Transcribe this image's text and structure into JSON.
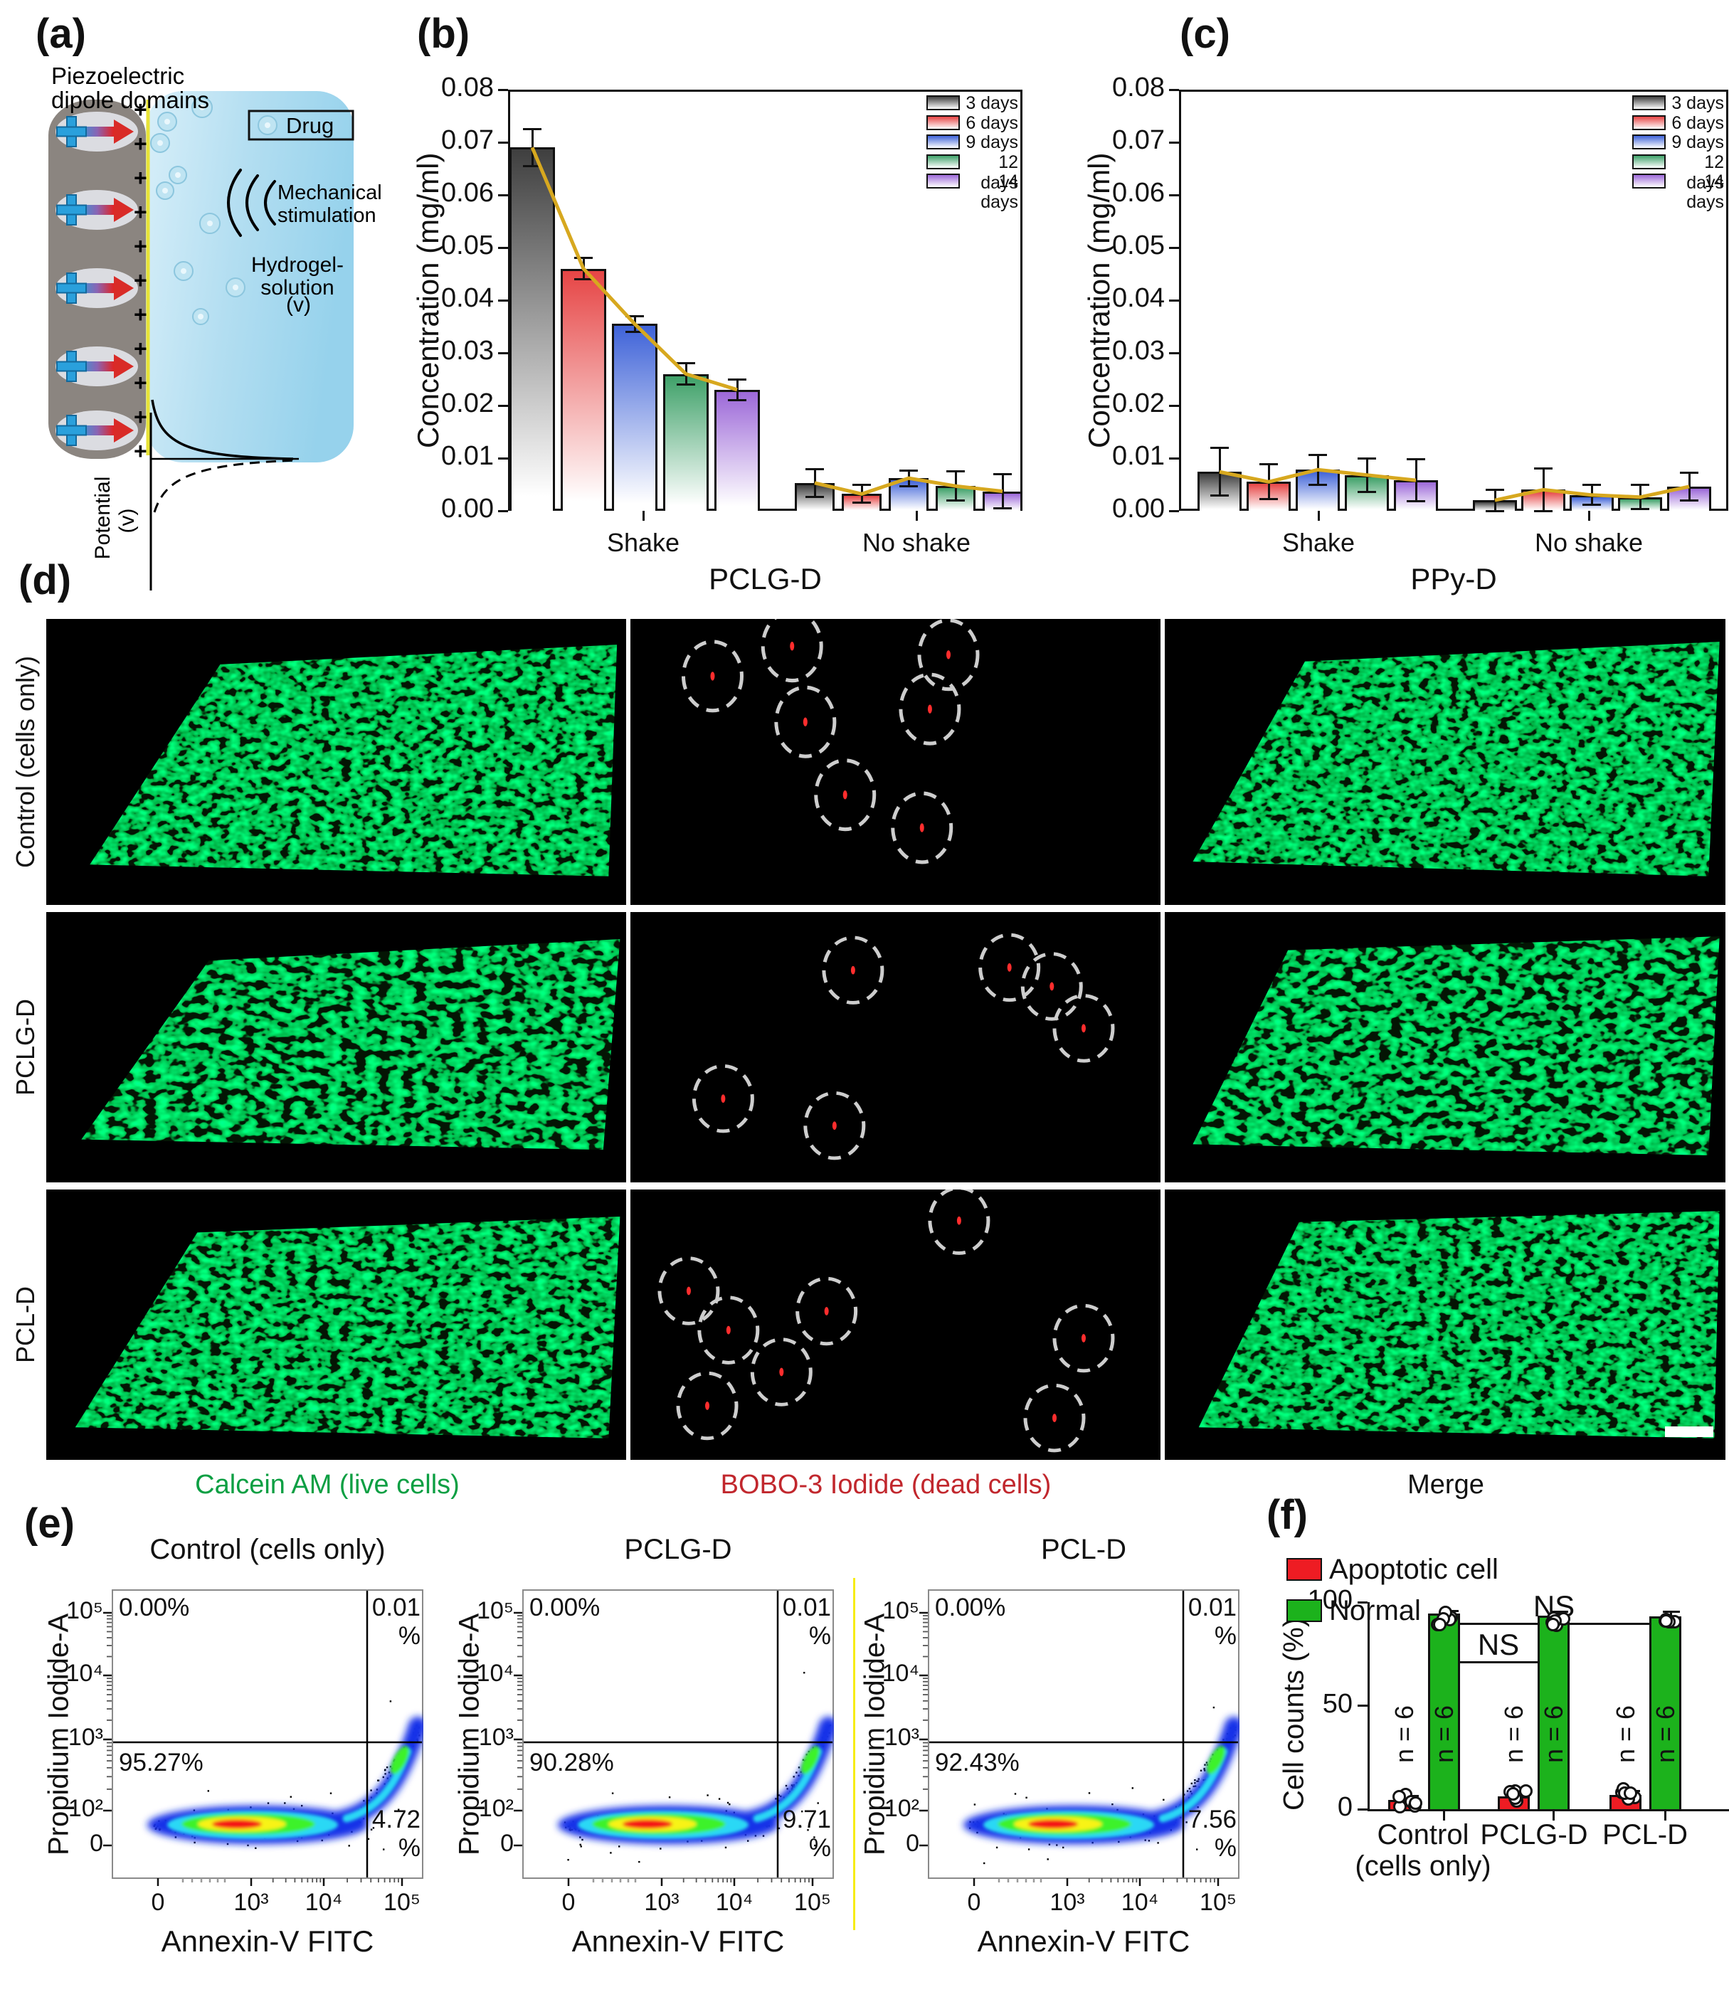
{
  "figure": {
    "panel_labels": {
      "a": "(a)",
      "b": "(b)",
      "c": "(c)",
      "d": "(d)",
      "e": "(e)",
      "f": "(f)"
    },
    "panel_a": {
      "piezo_line1": "Piezoelectric",
      "piezo_line2": "dipole domains",
      "drug": "Drug",
      "mech_line1": "Mechanical",
      "mech_line2": "stimulation",
      "hydrogel_line1": "Hydrogel-",
      "hydrogel_line2": "solution",
      "v": "(v)",
      "potential": "Potential",
      "potential_v": "(v)"
    },
    "panel_d": {
      "rows": [
        {
          "label": "Control (cells only)",
          "dead_cells": [
            {
              "x": 0.155,
              "y": 0.2
            },
            {
              "x": 0.305,
              "y": 0.095
            },
            {
              "x": 0.6,
              "y": 0.125
            },
            {
              "x": 0.33,
              "y": 0.36
            },
            {
              "x": 0.565,
              "y": 0.315
            },
            {
              "x": 0.405,
              "y": 0.615
            },
            {
              "x": 0.55,
              "y": 0.73
            }
          ]
        },
        {
          "label": "PCLG-D",
          "dead_cells": [
            {
              "x": 0.42,
              "y": 0.215
            },
            {
              "x": 0.715,
              "y": 0.205
            },
            {
              "x": 0.795,
              "y": 0.275
            },
            {
              "x": 0.855,
              "y": 0.43
            },
            {
              "x": 0.175,
              "y": 0.69
            },
            {
              "x": 0.385,
              "y": 0.79
            }
          ]
        },
        {
          "label": "PCL-D",
          "dead_cells": [
            {
              "x": 0.62,
              "y": 0.115
            },
            {
              "x": 0.11,
              "y": 0.375
            },
            {
              "x": 0.185,
              "y": 0.52
            },
            {
              "x": 0.37,
              "y": 0.45
            },
            {
              "x": 0.285,
              "y": 0.675
            },
            {
              "x": 0.145,
              "y": 0.8
            },
            {
              "x": 0.855,
              "y": 0.55
            },
            {
              "x": 0.8,
              "y": 0.845
            }
          ]
        }
      ],
      "captions": [
        {
          "text": "Calcein AM (live cells)",
          "color": "#0c9f43"
        },
        {
          "text": "BOBO-3 Iodide (dead cells)",
          "color": "#c1272d"
        },
        {
          "text": "Merge",
          "color": "#111111"
        }
      ]
    }
  },
  "chart_data": [
    {
      "id": "pclg_release",
      "type": "bar",
      "panel": "b",
      "title": "",
      "xlabel": "PCLG-D",
      "ylabel": "Concentration (mg/ml)",
      "ylim": [
        0,
        0.08
      ],
      "ytick_step": 0.01,
      "grid": false,
      "legend_position": "top-right",
      "series_labels": [
        "3 days",
        "6 days",
        "9 days",
        "12 days",
        "14 days"
      ],
      "series_colors": [
        "#3f3f3f",
        "#e64545",
        "#3f63d8",
        "#3fa169",
        "#9c68d8"
      ],
      "trend_color": "#d7a81f",
      "groups": [
        {
          "label": "Shake",
          "values": [
            0.069,
            0.046,
            0.0355,
            0.026,
            0.023
          ],
          "errors": [
            0.0035,
            0.002,
            0.0015,
            0.002,
            0.002
          ]
        },
        {
          "label": "No shake",
          "values": [
            0.0053,
            0.0032,
            0.0062,
            0.0047,
            0.0037
          ],
          "errors": [
            0.0026,
            0.0017,
            0.0015,
            0.0028,
            0.0032
          ]
        }
      ]
    },
    {
      "id": "ppy_release",
      "type": "bar",
      "panel": "c",
      "title": "",
      "xlabel": "PPy-D",
      "ylabel": "Concentration (mg/ml)",
      "ylim": [
        0,
        0.08
      ],
      "ytick_step": 0.01,
      "grid": false,
      "legend_position": "top-right",
      "series_labels": [
        "3 days",
        "6 days",
        "9 days",
        "12 days",
        "14 days"
      ],
      "series_colors": [
        "#3f3f3f",
        "#e64545",
        "#3f63d8",
        "#3fa169",
        "#9c68d8"
      ],
      "trend_color": "#d7a81f",
      "groups": [
        {
          "label": "Shake",
          "values": [
            0.0074,
            0.0055,
            0.0078,
            0.0068,
            0.0058
          ],
          "errors": [
            0.0045,
            0.0033,
            0.0028,
            0.0032,
            0.004
          ]
        },
        {
          "label": "No shake",
          "values": [
            0.002,
            0.004,
            0.003,
            0.0026,
            0.0046
          ],
          "errors": [
            0.002,
            0.004,
            0.0019,
            0.0023,
            0.0026
          ]
        }
      ]
    },
    {
      "id": "flow_control",
      "type": "flow-density",
      "panel": "e",
      "title": "Control (cells only)",
      "xlabel": "Annexin-V FITC",
      "ylabel": "Propidium Iodide-A",
      "x_ticks": [
        "0",
        "10³",
        "10⁴",
        "10⁵"
      ],
      "y_ticks": [
        "10⁵",
        "10⁴",
        "10³",
        "10²",
        "0"
      ],
      "quadrants": {
        "top_left": "0.00%",
        "top_right": "0.01\n%",
        "lower_left": "95.27%",
        "lower_right": "4.72\n%"
      }
    },
    {
      "id": "flow_pclg",
      "type": "flow-density",
      "panel": "e",
      "title": "PCLG-D",
      "xlabel": "Annexin-V FITC",
      "ylabel": "Propidium Iodide-A",
      "x_ticks": [
        "0",
        "10³",
        "10⁴",
        "10⁵"
      ],
      "y_ticks": [
        "10⁵",
        "10⁴",
        "10³",
        "10²",
        "0"
      ],
      "quadrants": {
        "top_left": "0.00%",
        "top_right": "0.01\n%",
        "lower_left": "90.28%",
        "lower_right": "9.71\n%"
      }
    },
    {
      "id": "flow_pcl",
      "type": "flow-density",
      "panel": "e",
      "title": "PCL-D",
      "xlabel": "Annexin-V FITC",
      "ylabel": "Propidium Iodide-A",
      "x_ticks": [
        "0",
        "10³",
        "10⁴",
        "10⁵"
      ],
      "y_ticks": [
        "10⁵",
        "10⁴",
        "10³",
        "10²",
        "0"
      ],
      "quadrants": {
        "top_left": "0.00%",
        "top_right": "0.01\n%",
        "lower_left": "92.43%",
        "lower_right": "7.56\n%"
      }
    },
    {
      "id": "cell_counts",
      "type": "grouped-bar",
      "panel": "f",
      "ylabel": "Cell counts (%)",
      "ylim": [
        0,
        100
      ],
      "yticks": [
        0,
        50,
        100
      ],
      "categories": [
        "Control\n(cells only)",
        "PCLG-D",
        "PCL-D"
      ],
      "series": [
        {
          "name": "Apoptotic cell",
          "color": "#ee1c23",
          "values": [
            4.5,
            6.2,
            6.8
          ],
          "errors": [
            1.8,
            2.2,
            2.0
          ]
        },
        {
          "name": "Normal",
          "color": "#1cb21c",
          "values": [
            94.5,
            93.5,
            93.0
          ],
          "errors": [
            1.2,
            2.0,
            2.5
          ]
        }
      ],
      "n_label": "n = 6",
      "significance": [
        {
          "label": "NS",
          "between": [
            "Control (cells only)",
            "PCLG-D"
          ]
        },
        {
          "label": "NS",
          "between": [
            "Control (cells only)",
            "PCL-D"
          ]
        }
      ]
    }
  ]
}
